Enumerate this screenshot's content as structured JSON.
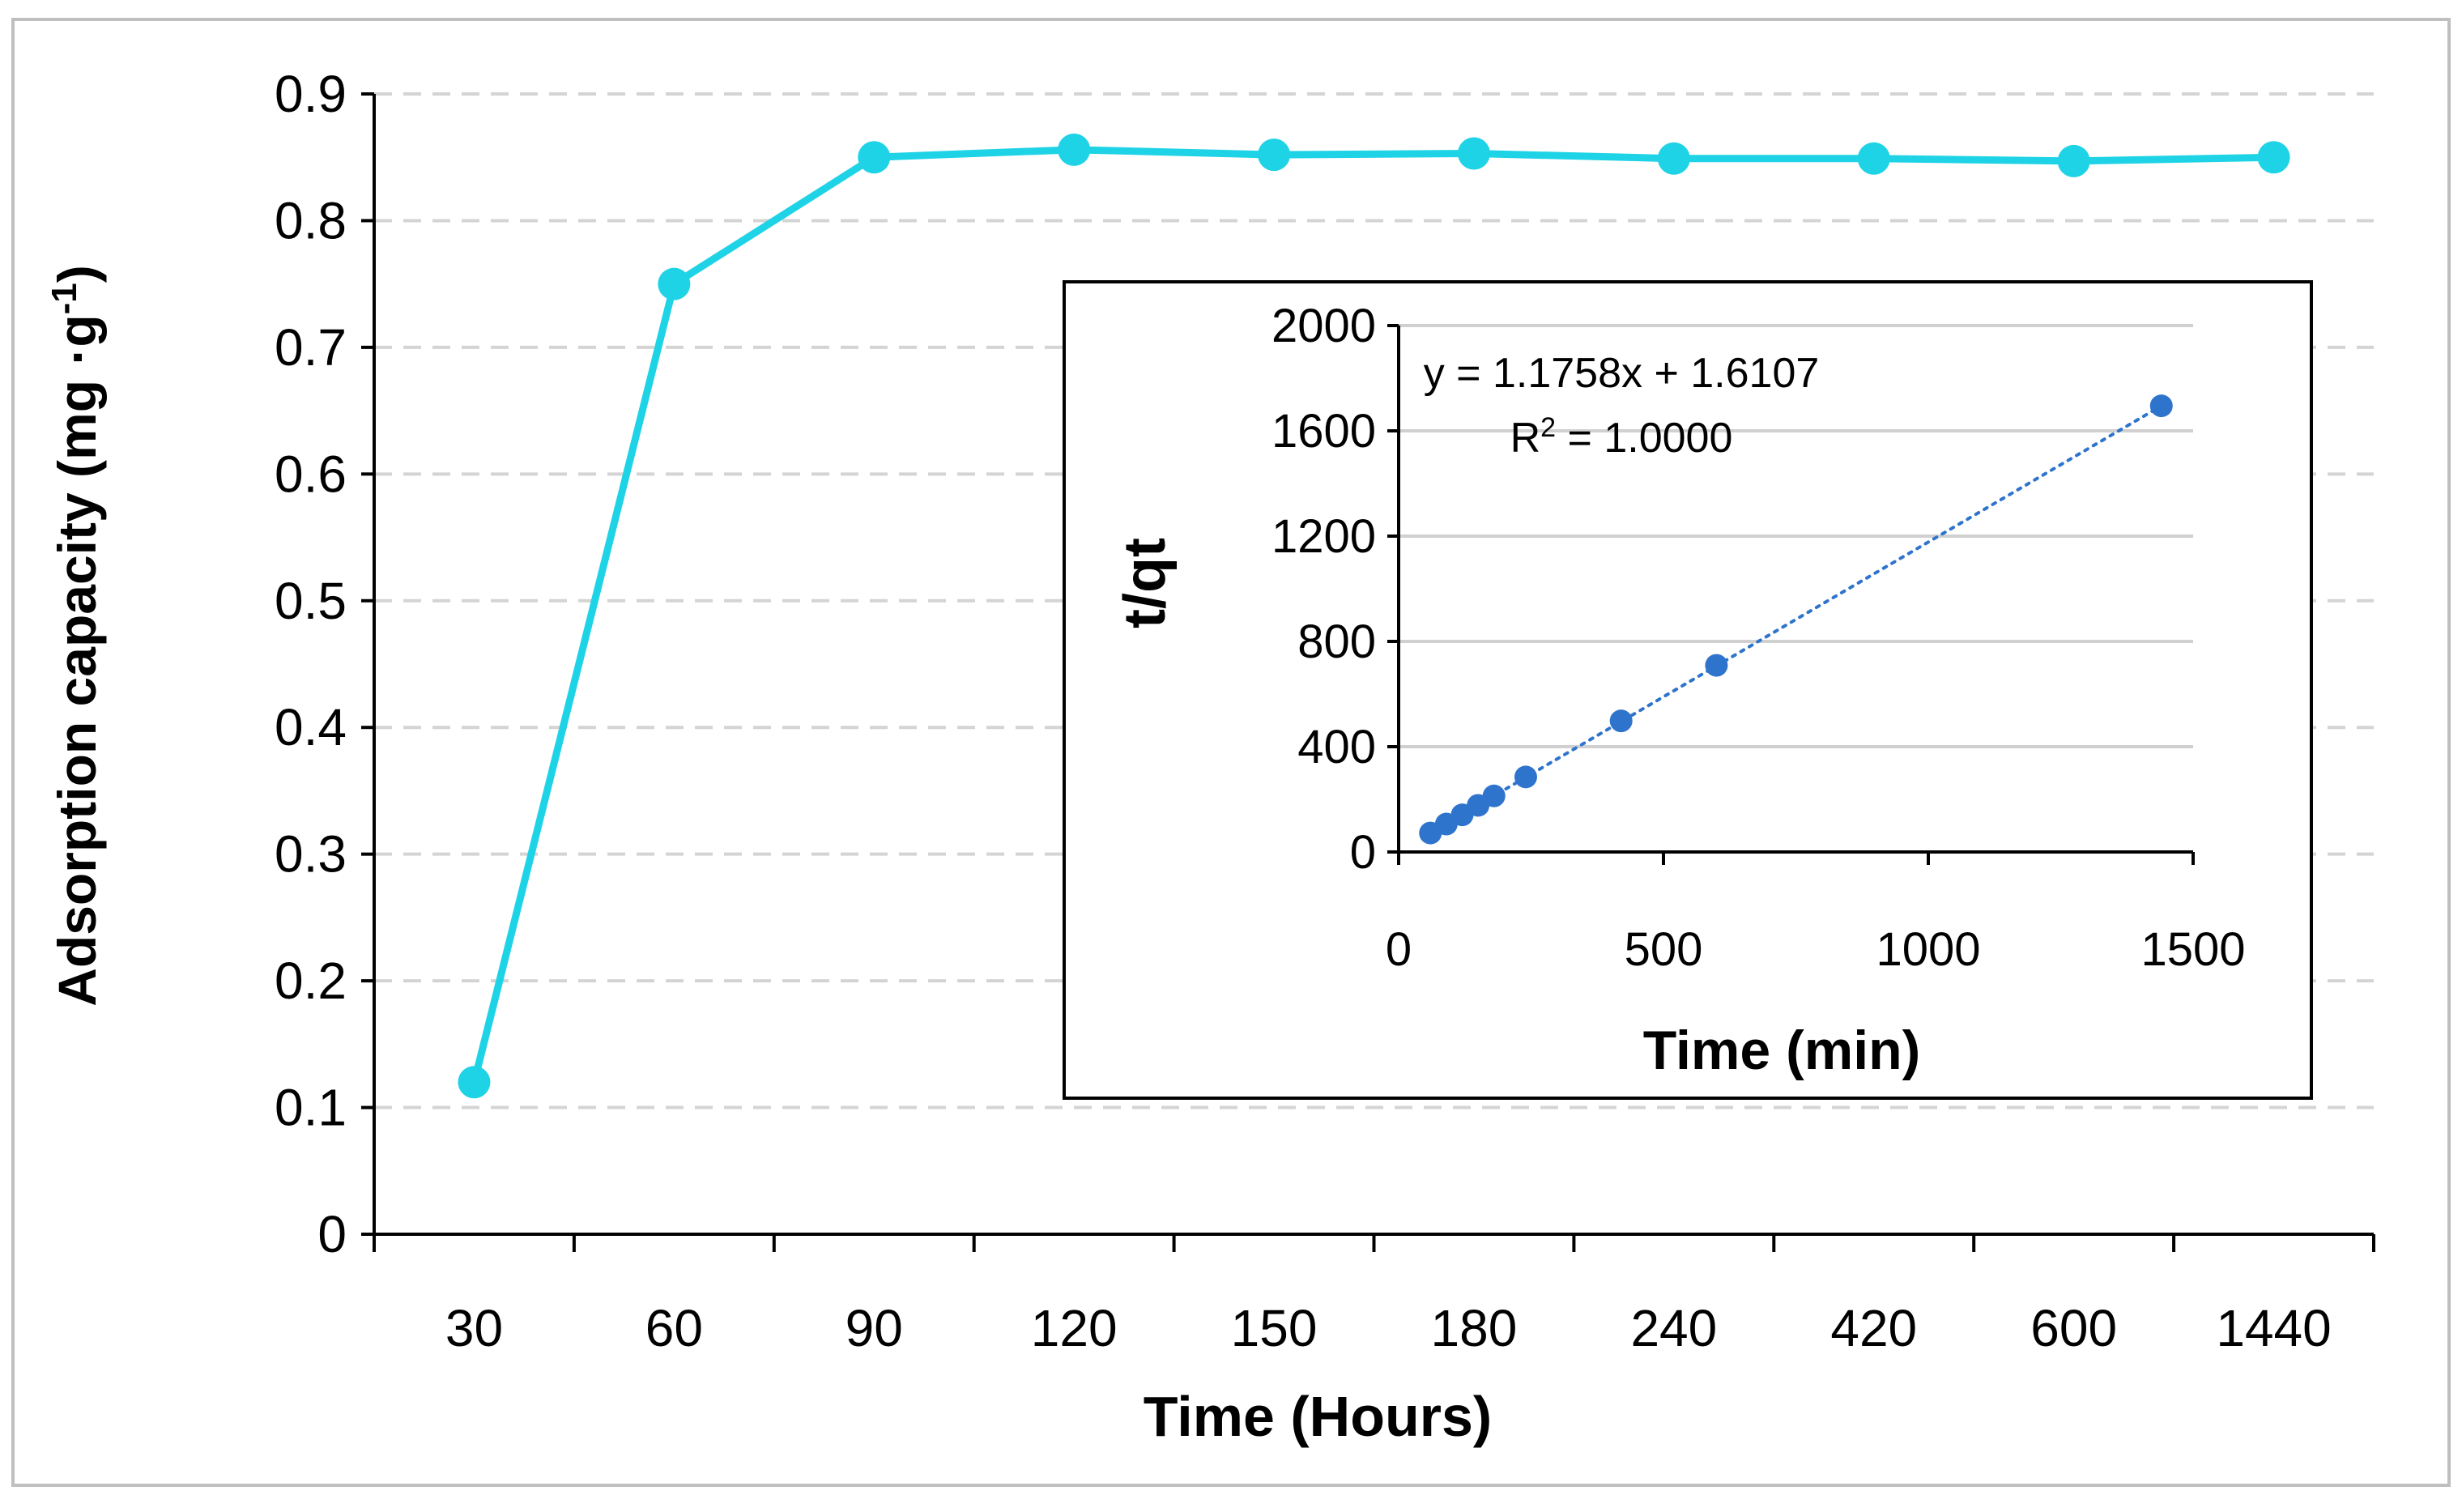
{
  "chart_data": [
    {
      "type": "line",
      "role": "main",
      "categories": [
        "30",
        "60",
        "90",
        "120",
        "150",
        "180",
        "240",
        "420",
        "600",
        "1440"
      ],
      "series": [
        {
          "name": "Adsorption capacity",
          "values": [
            0.12,
            0.75,
            0.85,
            0.856,
            0.852,
            0.853,
            0.849,
            0.849,
            0.847,
            0.85
          ],
          "color": "#1fd3e6"
        }
      ],
      "xlabel": "Time (Hours)",
      "ylabel": {
        "prefix": "Adsorption capacity (mg ·g",
        "superscript": "-1",
        "suffix": ")"
      },
      "ylim": [
        0,
        0.9
      ],
      "yticks": [
        "0",
        "0.1",
        "0.2",
        "0.3",
        "0.4",
        "0.5",
        "0.6",
        "0.7",
        "0.8",
        "0.9"
      ],
      "grid": "dashed horizontal",
      "gridColor": "#d4d4d4"
    },
    {
      "type": "scatter",
      "role": "inset",
      "series": [
        {
          "name": "t/qt",
          "x": [
            60,
            90,
            120,
            150,
            180,
            240,
            420,
            600,
            1440
          ],
          "y": [
            72,
            106,
            141,
            177,
            213,
            285,
            498,
            709,
            1695
          ],
          "color": "#2f74cc"
        }
      ],
      "trendline": {
        "slope": 1.1758,
        "intercept": 1.6107,
        "style": "dotted",
        "color": "#2f74cc",
        "equation": "y = 1.1758x + 1.6107",
        "r2_prefix": "R",
        "r2_superscript": "2",
        "r2_suffix": " = 1.0000"
      },
      "xlabel": "Time (min)",
      "ylabel": "t/qt",
      "xlim": [
        0,
        1500
      ],
      "ylim": [
        0,
        2000
      ],
      "xticks": [
        "0",
        "500",
        "1000",
        "1500"
      ],
      "yticks": [
        "0",
        "400",
        "800",
        "1200",
        "1600",
        "2000"
      ],
      "grid": "solid horizontal",
      "gridColor": "#d0d0d0"
    }
  ],
  "colors": {
    "frame": "#bfbfbf",
    "axis": "#000000",
    "main_series": "#1fd3e6",
    "inset_series": "#2f74cc"
  }
}
